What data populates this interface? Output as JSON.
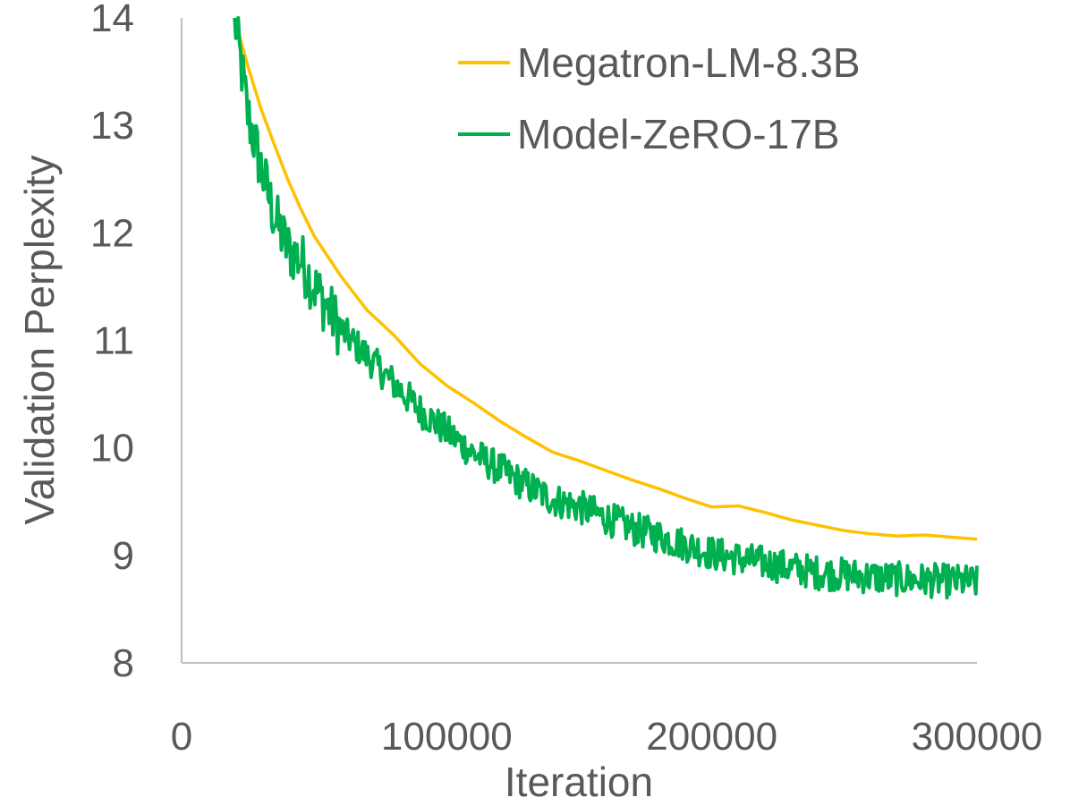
{
  "chart_data": {
    "type": "line",
    "title": "",
    "xlabel": "Iteration",
    "ylabel": "Validation Perplexity",
    "xlim": [
      0,
      300000
    ],
    "ylim": [
      8,
      14
    ],
    "x_ticks": [
      0,
      100000,
      200000,
      300000
    ],
    "x_tick_labels": [
      "0",
      "100000",
      "200000",
      "300000"
    ],
    "y_ticks": [
      8,
      9,
      10,
      11,
      12,
      13,
      14
    ],
    "y_tick_labels": [
      "8",
      "9",
      "10",
      "11",
      "12",
      "13",
      "14"
    ],
    "grid": false,
    "legend_position": "top-right",
    "series": [
      {
        "name": "Megatron-LM-8.3B",
        "color": "#ffc000",
        "x": [
          20000,
          25000,
          30000,
          35000,
          40000,
          45000,
          50000,
          60000,
          70000,
          80000,
          90000,
          100000,
          110000,
          120000,
          130000,
          140000,
          150000,
          160000,
          170000,
          180000,
          190000,
          200000,
          210000,
          220000,
          230000,
          240000,
          250000,
          260000,
          270000,
          280000,
          290000,
          300000
        ],
        "values": [
          14.0,
          13.55,
          13.15,
          12.82,
          12.5,
          12.22,
          11.97,
          11.6,
          11.28,
          11.05,
          10.78,
          10.58,
          10.42,
          10.25,
          10.1,
          9.96,
          9.88,
          9.79,
          9.7,
          9.62,
          9.53,
          9.45,
          9.46,
          9.4,
          9.33,
          9.28,
          9.23,
          9.2,
          9.18,
          9.19,
          9.17,
          9.15
        ]
      },
      {
        "name": "Model-ZeRO-17B",
        "color": "#00b050",
        "noisy": true,
        "x": [
          20000,
          25000,
          30000,
          35000,
          40000,
          45000,
          50000,
          60000,
          70000,
          80000,
          90000,
          100000,
          110000,
          120000,
          130000,
          140000,
          150000,
          160000,
          170000,
          180000,
          190000,
          200000,
          210000,
          220000,
          230000,
          240000,
          250000,
          260000,
          270000,
          280000,
          290000,
          300000
        ],
        "values": [
          14.0,
          13.1,
          12.6,
          12.15,
          11.85,
          11.75,
          11.5,
          11.1,
          10.85,
          10.6,
          10.35,
          10.15,
          9.95,
          9.8,
          9.65,
          9.52,
          9.45,
          9.35,
          9.25,
          9.18,
          9.1,
          9.02,
          8.97,
          8.93,
          8.88,
          8.84,
          8.82,
          8.8,
          8.78,
          8.77,
          8.76,
          8.75
        ]
      }
    ]
  }
}
